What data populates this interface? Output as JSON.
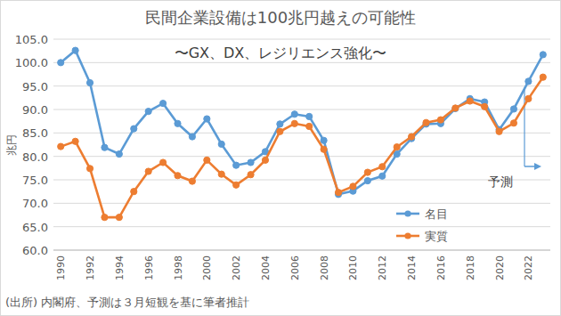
{
  "chart_data": {
    "type": "line",
    "title": "民間企業設備は100兆円越えの可能性",
    "subtitle": "〜GX、DX、レジリエンス強化〜",
    "y_label": "兆円",
    "annotations": [
      "予測"
    ],
    "source": "(出所) 内閣府、予測は３月短観を基に筆者推計",
    "categories": [
      "1990",
      null,
      "1992",
      null,
      "1994",
      null,
      "1996",
      null,
      "1998",
      null,
      "2000",
      null,
      "2002",
      null,
      "2004",
      null,
      "2006",
      null,
      "2008",
      null,
      "2010",
      null,
      "2012",
      null,
      "2014",
      null,
      "2016",
      null,
      "2018",
      null,
      "2020",
      null,
      "2022",
      null
    ],
    "series": [
      {
        "name": "名目",
        "color": "#5b9bd5",
        "marker": "circle",
        "line_style": "solid",
        "values": [
          100.0,
          102.6,
          95.7,
          81.9,
          80.5,
          85.9,
          89.6,
          91.3,
          87.0,
          84.2,
          88.0,
          82.6,
          78.1,
          78.7,
          81.0,
          86.9,
          89.0,
          88.5,
          83.4,
          71.9,
          72.6,
          74.8,
          75.8,
          80.5,
          83.8,
          86.9,
          87.0,
          90.2,
          92.3,
          91.6,
          85.7,
          90.1,
          96.0,
          101.7
        ]
      },
      {
        "name": "実質",
        "color": "#ed7d31",
        "marker": "circle",
        "line_style": "solid",
        "values": [
          82.1,
          83.2,
          77.4,
          67.0,
          67.0,
          72.5,
          76.8,
          78.7,
          75.9,
          74.7,
          79.2,
          76.2,
          73.9,
          76.1,
          79.2,
          85.3,
          87.0,
          86.4,
          81.5,
          72.3,
          73.6,
          76.6,
          77.8,
          82.0,
          84.2,
          87.2,
          87.8,
          90.3,
          91.8,
          90.6,
          85.3,
          87.1,
          92.3,
          96.9
        ]
      }
    ],
    "ylim": [
      60,
      105
    ],
    "yticks": [
      {
        "value": 60,
        "label": "60.0"
      },
      {
        "value": 65,
        "label": "65.0"
      },
      {
        "value": 70,
        "label": "70.0"
      },
      {
        "value": 75,
        "label": "75.0"
      },
      {
        "value": 80,
        "label": "80.0"
      },
      {
        "value": 85,
        "label": "85.0"
      },
      {
        "value": 90,
        "label": "90.0"
      },
      {
        "value": 95,
        "label": "95.0"
      },
      {
        "value": 100,
        "label": "100.0"
      },
      {
        "value": 105,
        "label": "105.0"
      }
    ],
    "grid": true,
    "legend": "lower right"
  }
}
